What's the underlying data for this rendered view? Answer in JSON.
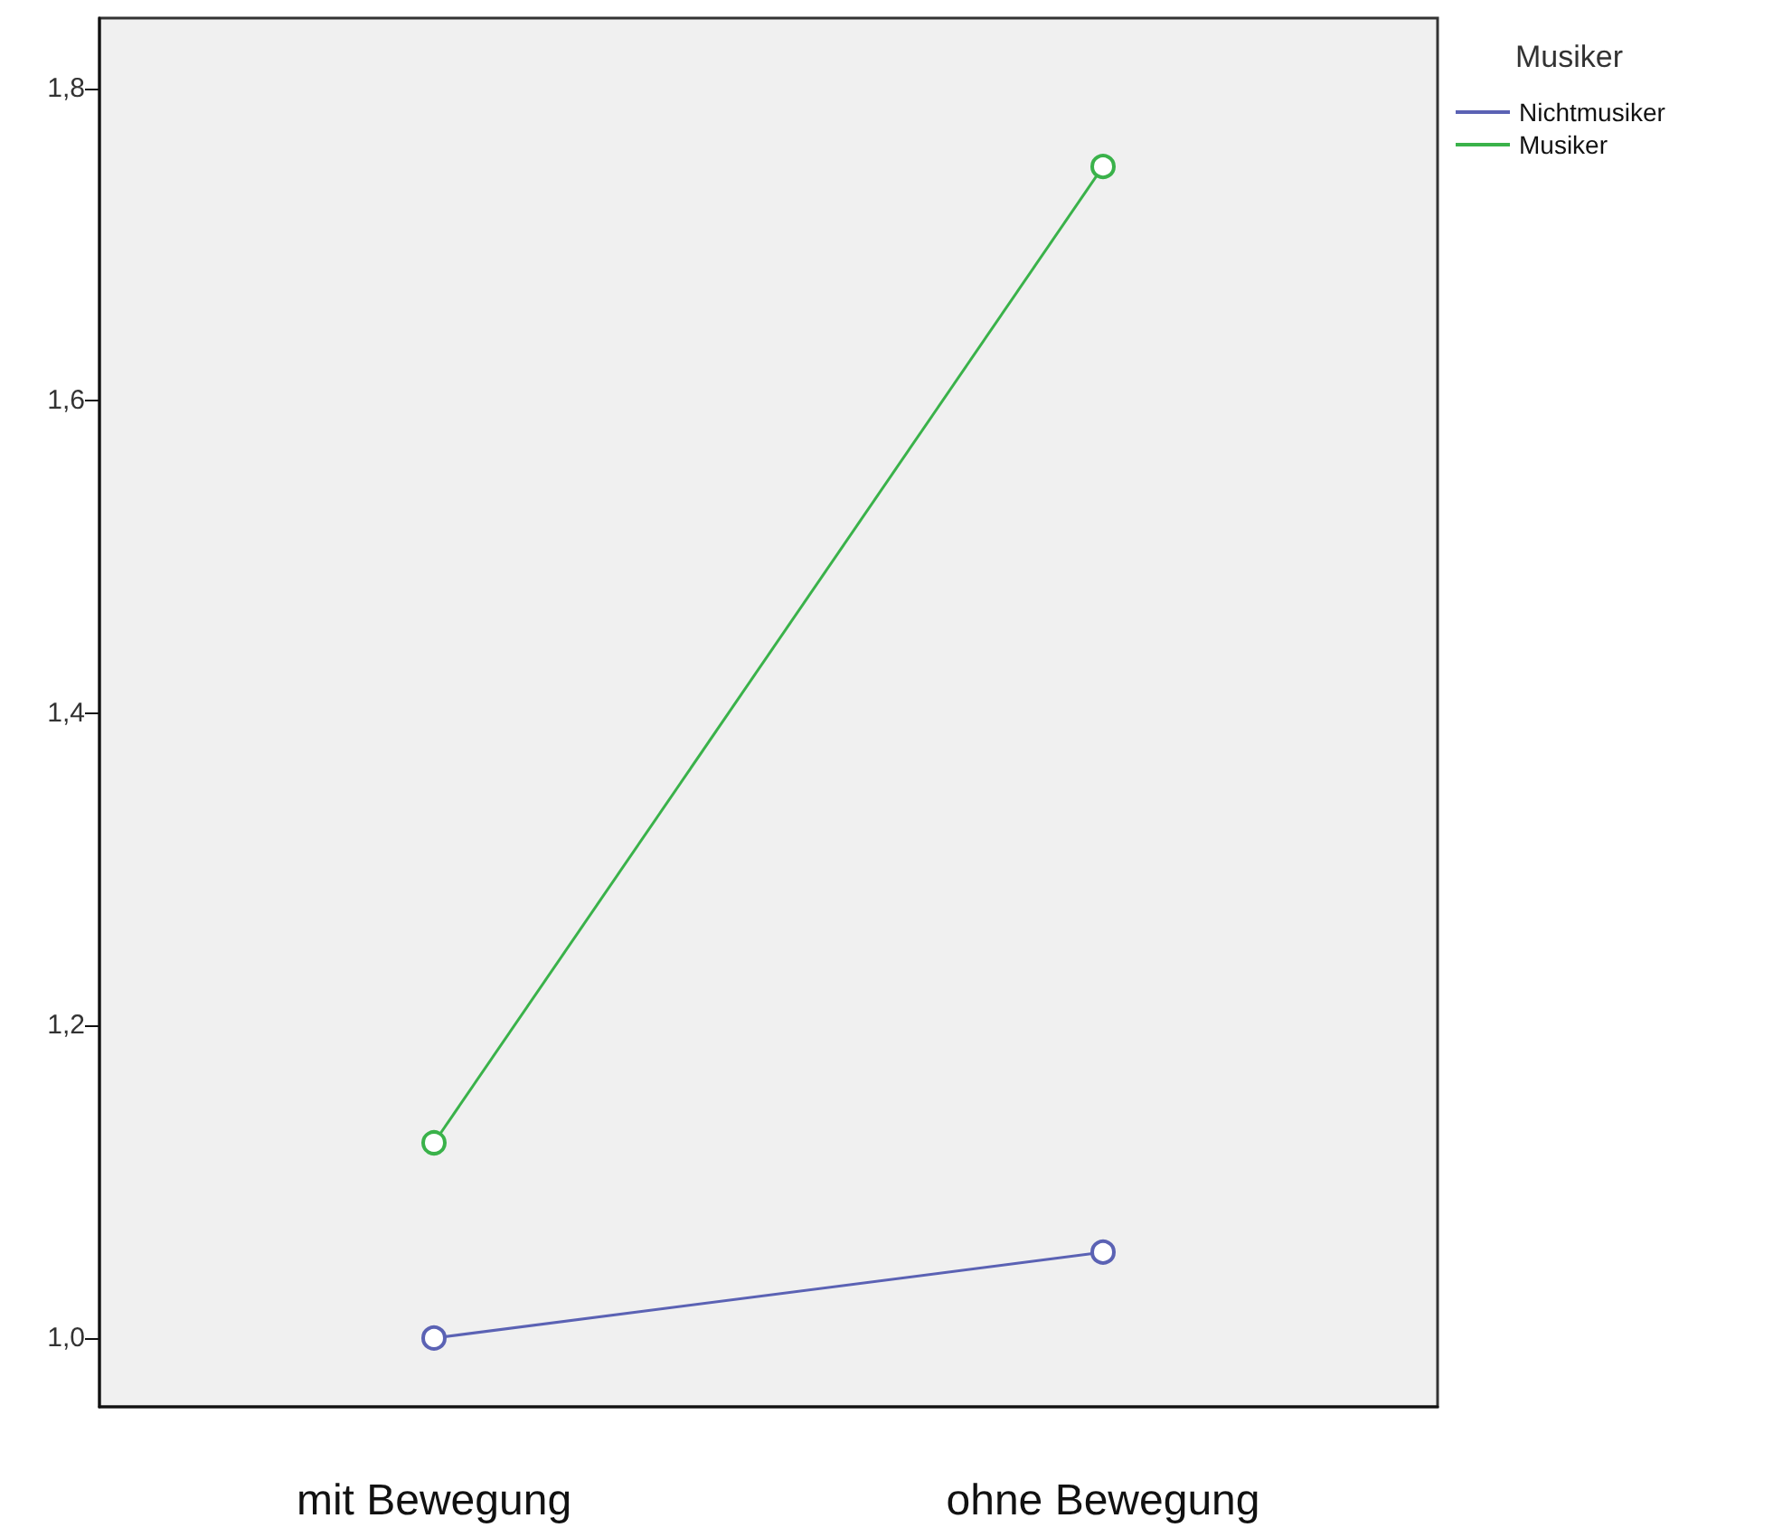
{
  "chart_data": {
    "type": "line",
    "categories": [
      "mit Bewegung",
      "ohne Bewegung"
    ],
    "series": [
      {
        "name": "Nichtmusiker",
        "color": "#5b62b4",
        "values": [
          1.0,
          1.055
        ]
      },
      {
        "name": "Musiker",
        "color": "#3ab24a",
        "values": [
          1.125,
          1.75
        ]
      }
    ],
    "ylim": [
      0.956,
      1.845
    ],
    "yticks": [
      {
        "value": 1.0,
        "label": "1,0"
      },
      {
        "value": 1.2,
        "label": "1,2"
      },
      {
        "value": 1.4,
        "label": "1,4"
      },
      {
        "value": 1.6,
        "label": "1,6"
      },
      {
        "value": 1.8,
        "label": "1,8"
      }
    ],
    "legend_title": "Musiker",
    "legend": "top right",
    "marker": "circle",
    "line_style": "solid",
    "grid": false
  }
}
